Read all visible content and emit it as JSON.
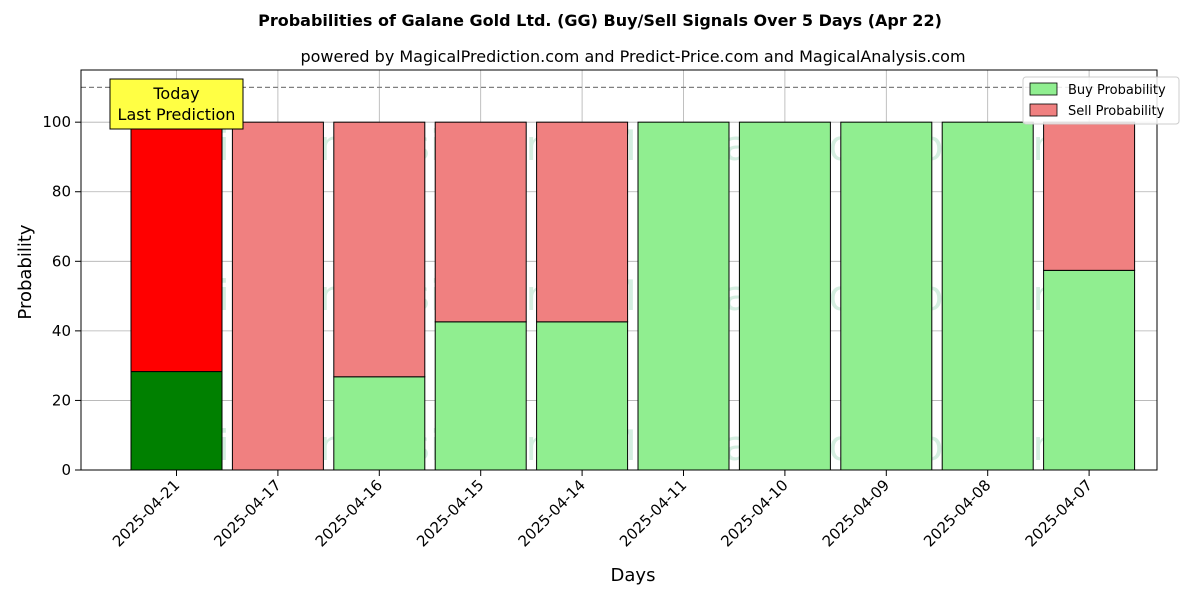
{
  "chart_data": {
    "type": "bar",
    "stacked": true,
    "title": "Probabilities of Galane Gold Ltd. (GG) Buy/Sell Signals Over 5 Days (Apr 22)",
    "subtitle": "powered by MagicalPrediction.com and Predict-Price.com and MagicalAnalysis.com",
    "xlabel": "Days",
    "ylabel": "Probability",
    "ylim": [
      0,
      115
    ],
    "yticks": [
      0,
      20,
      40,
      60,
      80,
      100
    ],
    "reference_line": 110,
    "grid": true,
    "legend_position": "top-right",
    "categories": [
      "2025-04-21",
      "2025-04-17",
      "2025-04-16",
      "2025-04-15",
      "2025-04-14",
      "2025-04-11",
      "2025-04-10",
      "2025-04-09",
      "2025-04-08",
      "2025-04-07"
    ],
    "series": [
      {
        "name": "Buy Probability",
        "values": [
          28.3,
          0,
          26.8,
          42.6,
          42.6,
          100,
          100,
          100,
          100,
          57.4
        ]
      },
      {
        "name": "Sell Probability",
        "values": [
          71.7,
          100,
          73.2,
          57.4,
          57.4,
          0,
          0,
          0,
          0,
          42.6
        ]
      }
    ],
    "highlight_index": 0,
    "annotation": {
      "line1": "Today",
      "line2": "Last Prediction"
    },
    "watermarks": [
      "MagicalAnalysis.com",
      "MagicalPrediction.com"
    ],
    "colors": {
      "buy": "#90ee90",
      "sell": "#f08080",
      "buy_highlight": "#008000",
      "sell_highlight": "#ff0000",
      "annotation_bg": "#ffff44",
      "grid": "#b0b0b0",
      "watermark": "#3cb371"
    }
  }
}
